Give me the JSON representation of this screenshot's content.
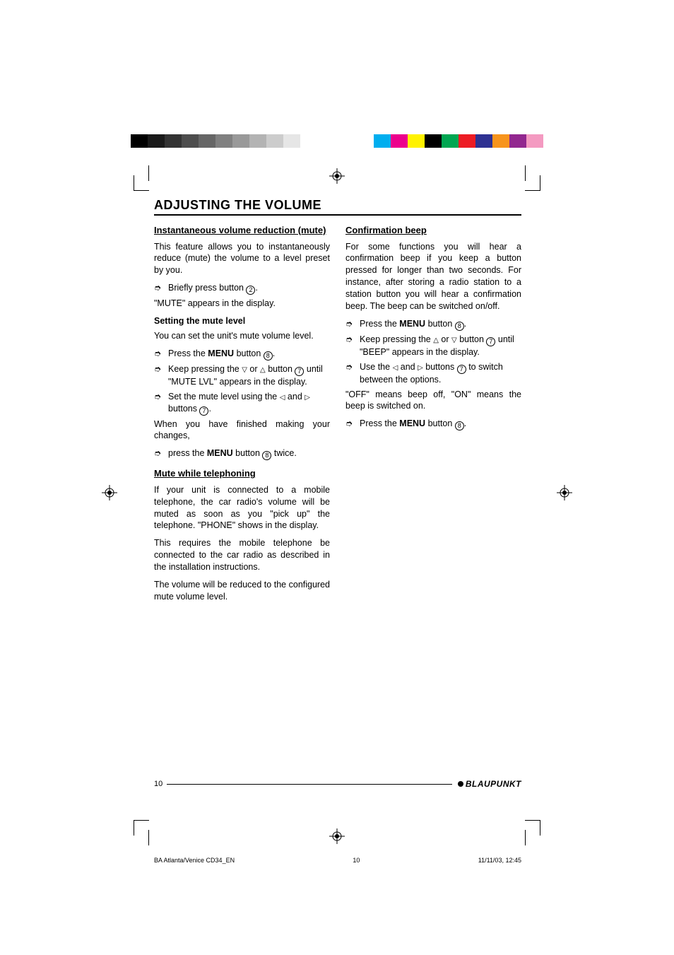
{
  "calibration_colors_gray": [
    "#000000",
    "#1a1a1a",
    "#333333",
    "#4d4d4d",
    "#666666",
    "#808080",
    "#999999",
    "#b3b3b3",
    "#cccccc",
    "#e6e6e6"
  ],
  "calibration_colors_cmyk": [
    "#00aeef",
    "#ec008c",
    "#fff200",
    "#000000",
    "#00a651",
    "#ed1c24",
    "#2e3192",
    "#f7941d",
    "#92278f",
    "#f49ac1"
  ],
  "section_title": "ADJUSTING THE VOLUME",
  "left": {
    "h1": "Instantaneous volume reduction (mute)",
    "p1": "This feature allows you to instantaneously reduce (mute) the volume to a level preset by you.",
    "s1_pre": "Briefly press button ",
    "s1_num": "2",
    "s1_post": ".",
    "p2": "\"MUTE\" appears in the display.",
    "h2": "Setting the mute level",
    "p3": "You can set the unit's mute volume level.",
    "s2_pre": "Press the ",
    "s2_bold": "MENU",
    "s2_mid": " button ",
    "s2_num": "8",
    "s2_post": ".",
    "s3_pre": "Keep pressing the ",
    "s3_sym1": "▽",
    "s3_mid1": " or ",
    "s3_sym2": "△",
    "s3_mid2": " button ",
    "s3_num": "7",
    "s3_post": " until \"MUTE LVL\" appears in the display.",
    "s4_pre": "Set the mute level using the ",
    "s4_sym1": "◁",
    "s4_mid": " and ",
    "s4_sym2": "▷",
    "s4_mid2": " buttons ",
    "s4_num": "7",
    "s4_post": ".",
    "p4": "When you have finished making your changes,",
    "s5_pre": "press the ",
    "s5_bold": "MENU",
    "s5_mid": " button ",
    "s5_num": "8",
    "s5_post": " twice.",
    "h3": "Mute while telephoning",
    "p5": "If your unit is connected to a mobile telephone, the car radio's volume will be muted as soon as you \"pick up\" the telephone. \"PHONE\" shows in the display.",
    "p6": "This requires the mobile telephone be connected to the car radio as described in the installation instructions.",
    "p7": "The volume will be reduced to the configured mute volume level."
  },
  "right": {
    "h1": "Confirmation beep",
    "p1": "For some functions you will hear a confirmation beep if you keep a button pressed for longer than two seconds. For instance, after storing a radio station to a station button you will hear a confirmation beep. The beep can be switched on/off.",
    "s1_pre": "Press the ",
    "s1_bold": "MENU",
    "s1_mid": " button ",
    "s1_num": "8",
    "s1_post": ".",
    "s2_pre": "Keep pressing the ",
    "s2_sym1": "△",
    "s2_mid1": " or ",
    "s2_sym2": "▽",
    "s2_mid2": " button ",
    "s2_num": "7",
    "s2_post": " until \"BEEP\" appears in the display.",
    "s3_pre": "Use the ",
    "s3_sym1": "◁",
    "s3_mid1": " and ",
    "s3_sym2": "▷",
    "s3_mid2": " buttons ",
    "s3_num": "7",
    "s3_post": " to switch between the options.",
    "p2": "\"OFF\" means beep off, \"ON\" means the beep is switched on.",
    "s4_pre": "Press the ",
    "s4_bold": "MENU",
    "s4_mid": " button ",
    "s4_num": "8",
    "s4_post": "."
  },
  "footer": {
    "page_number": "10",
    "brand": "BLAUPUNKT"
  },
  "slug": {
    "file": "BA Atlanta/Venice CD34_EN",
    "pg": "10",
    "timestamp": "11/11/03, 12:45"
  },
  "glyphs": {
    "step_arrow": "➮"
  }
}
